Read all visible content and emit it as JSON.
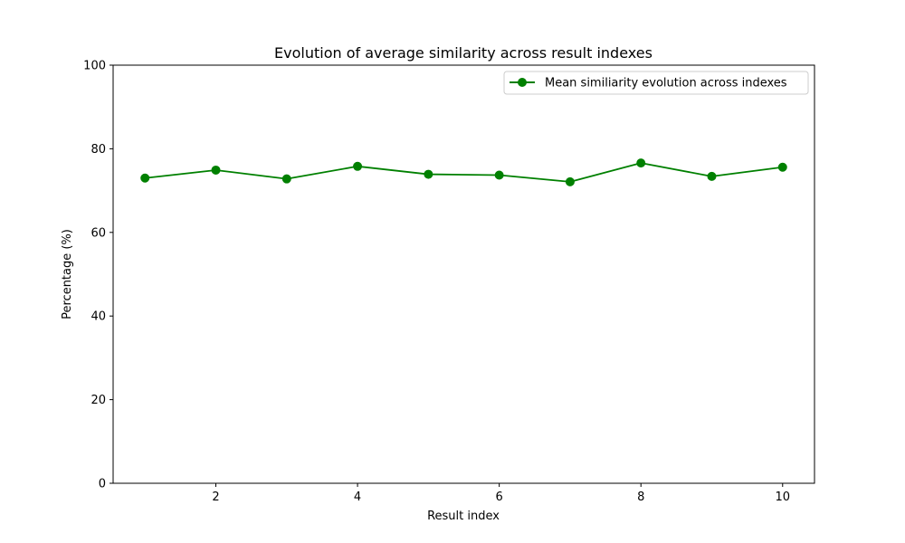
{
  "chart_data": {
    "type": "line",
    "title": "Evolution of average similarity across result indexes",
    "xlabel": "Result index",
    "ylabel": "Percentage (%)",
    "xlim": [
      0.55,
      10.45
    ],
    "ylim": [
      0,
      100
    ],
    "xticks": [
      2,
      4,
      6,
      8,
      10
    ],
    "yticks": [
      0,
      20,
      40,
      60,
      80,
      100
    ],
    "grid": false,
    "legend_position": "top-right",
    "series": [
      {
        "name": "Mean similiarity evolution across indexes",
        "color": "#008000",
        "marker": "circle",
        "x": [
          1,
          2,
          3,
          4,
          5,
          6,
          7,
          8,
          9,
          10
        ],
        "y": [
          73.0,
          74.9,
          72.8,
          75.8,
          73.9,
          73.7,
          72.1,
          76.6,
          73.4,
          75.6
        ]
      }
    ]
  }
}
